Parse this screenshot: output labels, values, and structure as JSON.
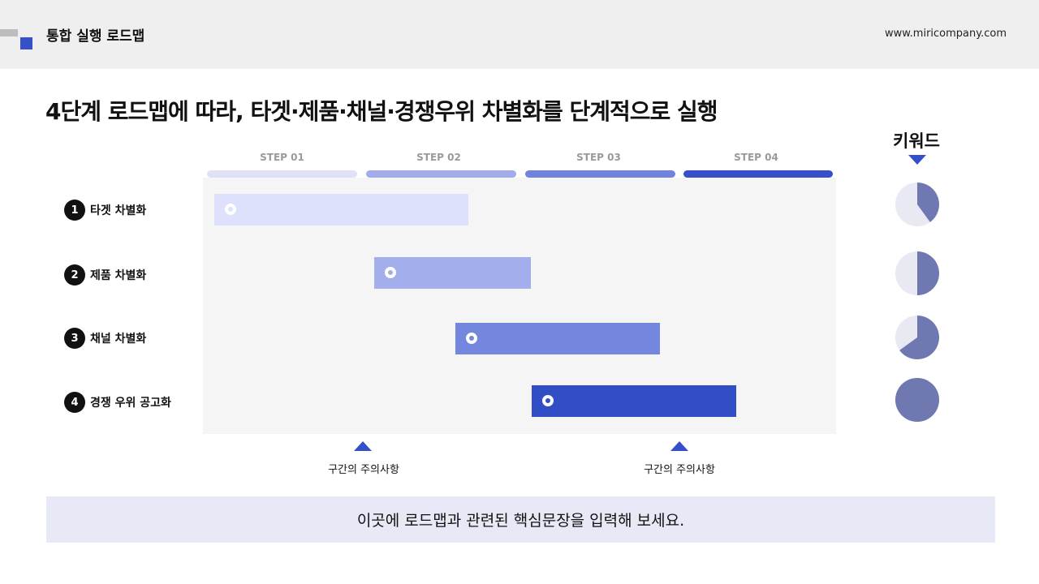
{
  "header": {
    "title": "통합 실행 로드맵",
    "url": "www.miricompany.com"
  },
  "main_title": "4단계 로드맵에 따라, 타겟·제품·채널·경쟁우위 차별화를 단계적으로 실행",
  "steps": [
    {
      "label": "STEP 01",
      "color": "#dfe1f7"
    },
    {
      "label": "STEP 02",
      "color": "#a3acea"
    },
    {
      "label": "STEP 03",
      "color": "#7183db"
    },
    {
      "label": "STEP 04",
      "color": "#3550c8"
    }
  ],
  "rows": [
    {
      "number": "1",
      "label": "타겟 차별화",
      "color": "#dde1fb"
    },
    {
      "number": "2",
      "label": "제품 차별화",
      "color": "#a3aeec"
    },
    {
      "number": "3",
      "label": "채널 차별화",
      "color": "#7287dd"
    },
    {
      "number": "4",
      "label": "경쟁 우위 공고화",
      "color": "#324ec4"
    }
  ],
  "keyword": {
    "title": "키워드",
    "pies": [
      {
        "fraction": 0.4,
        "fill_color": "#6f78b0",
        "track_color": "#e8e9f3"
      },
      {
        "fraction": 0.5,
        "fill_color": "#6f78b0",
        "track_color": "#e8e9f3"
      },
      {
        "fraction": 0.65,
        "fill_color": "#6f78b0",
        "track_color": "#e8e9f3"
      },
      {
        "fraction": 1.0,
        "fill_color": "#6f78b0",
        "track_color": "#e8e9f3"
      }
    ]
  },
  "cautions": [
    {
      "label": "구간의 주의사항"
    },
    {
      "label": "구간의 주의사항"
    }
  ],
  "footer": {
    "text": "이곳에 로드맵과 관련된 핵심문장을 입력해 보세요."
  },
  "colors": {
    "accent": "#3550c8",
    "header_bg": "#efefef",
    "grid_bg": "#f5f5f5",
    "footer_bg": "#e8e9f7"
  }
}
